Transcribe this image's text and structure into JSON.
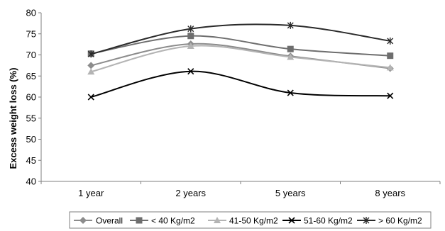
{
  "chart_data": {
    "type": "line",
    "categories": [
      "1 year",
      "2 years",
      "5 years",
      "8 years"
    ],
    "ylabel": "Excess weight loss (%)",
    "xlabel": "",
    "ylim": [
      40,
      80
    ],
    "yticks": [
      40,
      45,
      50,
      55,
      60,
      65,
      70,
      75,
      80
    ],
    "grid": false,
    "legend_position": "bottom",
    "series": [
      {
        "name": "Overall",
        "values": [
          67.5,
          72.6,
          69.7,
          66.8
        ],
        "color": "#8c8c8c",
        "marker": "diamond"
      },
      {
        "name": "< 40 Kg/m2",
        "values": [
          70.3,
          74.5,
          71.4,
          69.8
        ],
        "color": "#6e6e6e",
        "marker": "square"
      },
      {
        "name": "41-50 Kg/m2",
        "values": [
          66.0,
          72.1,
          69.5,
          67.0
        ],
        "color": "#b4b4b4",
        "marker": "triangle"
      },
      {
        "name": "51-60 Kg/m2",
        "values": [
          60.0,
          66.1,
          61.0,
          60.3
        ],
        "color": "#000000",
        "marker": "x"
      },
      {
        "name": "> 60 Kg/m2",
        "values": [
          70.2,
          76.2,
          77.0,
          73.3
        ],
        "color": "#2a2a2a",
        "marker": "star"
      }
    ]
  }
}
